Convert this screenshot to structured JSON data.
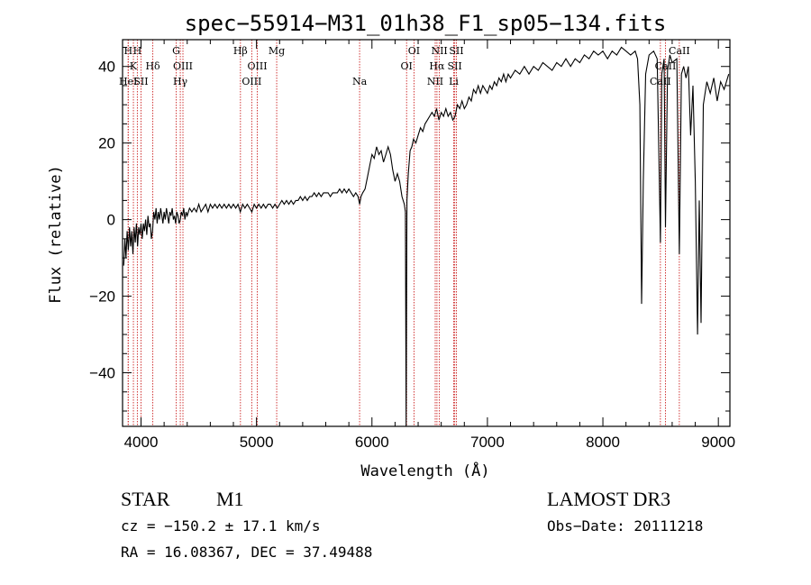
{
  "chart_data": {
    "type": "line",
    "title": "spec−55914−M31_01h38_F1_sp05−134.fits",
    "xlabel": "Wavelength (Å)",
    "ylabel": "Flux (relative)",
    "xlim": [
      3840,
      9100
    ],
    "ylim": [
      -54,
      47
    ],
    "xticks": [
      {
        "v": 4000,
        "label": "4000"
      },
      {
        "v": 5000,
        "label": "5000"
      },
      {
        "v": 6000,
        "label": "6000"
      },
      {
        "v": 7000,
        "label": "7000"
      },
      {
        "v": 8000,
        "label": "8000"
      },
      {
        "v": 9000,
        "label": "9000"
      }
    ],
    "yticks": [
      {
        "v": -40,
        "label": "−40"
      },
      {
        "v": -20,
        "label": "−20"
      },
      {
        "v": 0,
        "label": "0"
      },
      {
        "v": 20,
        "label": "20"
      },
      {
        "v": 40,
        "label": "40"
      }
    ],
    "line_color": "#000000",
    "marker_color": "#cc2222",
    "grid": false,
    "spectral_lines": [
      {
        "wl": 3889,
        "label": "H",
        "row": 0
      },
      {
        "wl": 3934,
        "label": "K",
        "row": 1
      },
      {
        "wl": 3968,
        "label": "H",
        "row": 0
      },
      {
        "wl": 3889,
        "label": "HeI",
        "row": 2
      },
      {
        "wl": 4000,
        "label": "SII",
        "row": 2
      },
      {
        "wl": 4102,
        "label": "Hδ",
        "row": 1
      },
      {
        "wl": 4305,
        "label": "G",
        "row": 0
      },
      {
        "wl": 4340,
        "label": "Hγ",
        "row": 2
      },
      {
        "wl": 4363,
        "label": "OIII",
        "row": 1
      },
      {
        "wl": 4861,
        "label": "Hβ",
        "row": 0
      },
      {
        "wl": 4959,
        "label": "OIII",
        "row": 2
      },
      {
        "wl": 5007,
        "label": "OIII",
        "row": 1
      },
      {
        "wl": 5175,
        "label": "Mg",
        "row": 0
      },
      {
        "wl": 5893,
        "label": "Na",
        "row": 2
      },
      {
        "wl": 6300,
        "label": "OI",
        "row": 1
      },
      {
        "wl": 6364,
        "label": "OI",
        "row": 0
      },
      {
        "wl": 6548,
        "label": "NII",
        "row": 2
      },
      {
        "wl": 6563,
        "label": "Hα",
        "row": 1
      },
      {
        "wl": 6584,
        "label": "NII",
        "row": 0
      },
      {
        "wl": 6708,
        "label": "Li",
        "row": 2
      },
      {
        "wl": 6717,
        "label": "SII",
        "row": 1
      },
      {
        "wl": 6731,
        "label": "SII",
        "row": 0
      },
      {
        "wl": 8498,
        "label": "CaII",
        "row": 2
      },
      {
        "wl": 8542,
        "label": "CaII",
        "row": 1
      },
      {
        "wl": 8662,
        "label": "CaII",
        "row": 0
      }
    ],
    "spectrum": [
      [
        3850,
        -12
      ],
      [
        3860,
        -5
      ],
      [
        3870,
        -10
      ],
      [
        3880,
        -3
      ],
      [
        3890,
        -8
      ],
      [
        3900,
        -2
      ],
      [
        3910,
        -7
      ],
      [
        3920,
        -3
      ],
      [
        3930,
        -9
      ],
      [
        3940,
        -2
      ],
      [
        3950,
        -6
      ],
      [
        3960,
        -1
      ],
      [
        3970,
        -7
      ],
      [
        3980,
        -2
      ],
      [
        3990,
        -4
      ],
      [
        4000,
        -1
      ],
      [
        4010,
        -5
      ],
      [
        4020,
        -1
      ],
      [
        4030,
        -3
      ],
      [
        4040,
        0
      ],
      [
        4050,
        -4
      ],
      [
        4060,
        1
      ],
      [
        4070,
        -2
      ],
      [
        4080,
        -1
      ],
      [
        4090,
        -5
      ],
      [
        4100,
        -3
      ],
      [
        4110,
        2
      ],
      [
        4120,
        0
      ],
      [
        4130,
        3
      ],
      [
        4140,
        -1
      ],
      [
        4150,
        2
      ],
      [
        4160,
        0
      ],
      [
        4170,
        3
      ],
      [
        4180,
        1
      ],
      [
        4190,
        -1
      ],
      [
        4200,
        2
      ],
      [
        4210,
        0
      ],
      [
        4220,
        3
      ],
      [
        4230,
        1
      ],
      [
        4240,
        -1
      ],
      [
        4250,
        2
      ],
      [
        4260,
        1
      ],
      [
        4270,
        3
      ],
      [
        4280,
        0
      ],
      [
        4290,
        1
      ],
      [
        4300,
        -1
      ],
      [
        4310,
        2
      ],
      [
        4320,
        1
      ],
      [
        4330,
        -1
      ],
      [
        4340,
        0
      ],
      [
        4350,
        2
      ],
      [
        4360,
        1
      ],
      [
        4370,
        3
      ],
      [
        4380,
        0
      ],
      [
        4390,
        2
      ],
      [
        4400,
        1
      ],
      [
        4420,
        3
      ],
      [
        4440,
        2
      ],
      [
        4460,
        3
      ],
      [
        4480,
        2
      ],
      [
        4500,
        4
      ],
      [
        4520,
        2
      ],
      [
        4540,
        3
      ],
      [
        4560,
        4
      ],
      [
        4580,
        2
      ],
      [
        4600,
        4
      ],
      [
        4620,
        3
      ],
      [
        4640,
        4
      ],
      [
        4660,
        3
      ],
      [
        4680,
        4
      ],
      [
        4700,
        3
      ],
      [
        4720,
        4
      ],
      [
        4740,
        3
      ],
      [
        4760,
        4
      ],
      [
        4780,
        3
      ],
      [
        4800,
        4
      ],
      [
        4820,
        3
      ],
      [
        4840,
        4
      ],
      [
        4860,
        2
      ],
      [
        4880,
        4
      ],
      [
        4900,
        3
      ],
      [
        4920,
        4
      ],
      [
        4940,
        3
      ],
      [
        4960,
        2
      ],
      [
        4980,
        4
      ],
      [
        5000,
        3
      ],
      [
        5020,
        4
      ],
      [
        5040,
        3
      ],
      [
        5060,
        4
      ],
      [
        5080,
        3
      ],
      [
        5100,
        4
      ],
      [
        5120,
        4
      ],
      [
        5140,
        3
      ],
      [
        5160,
        4
      ],
      [
        5180,
        3
      ],
      [
        5200,
        4
      ],
      [
        5220,
        5
      ],
      [
        5240,
        4
      ],
      [
        5260,
        5
      ],
      [
        5280,
        4
      ],
      [
        5300,
        5
      ],
      [
        5320,
        4
      ],
      [
        5340,
        5
      ],
      [
        5360,
        5
      ],
      [
        5380,
        6
      ],
      [
        5400,
        5
      ],
      [
        5420,
        6
      ],
      [
        5440,
        5
      ],
      [
        5460,
        6
      ],
      [
        5480,
        6
      ],
      [
        5500,
        7
      ],
      [
        5520,
        6
      ],
      [
        5540,
        7
      ],
      [
        5560,
        6
      ],
      [
        5580,
        7
      ],
      [
        5600,
        7
      ],
      [
        5620,
        7
      ],
      [
        5640,
        6
      ],
      [
        5660,
        7
      ],
      [
        5680,
        7
      ],
      [
        5700,
        7
      ],
      [
        5720,
        8
      ],
      [
        5740,
        7
      ],
      [
        5760,
        8
      ],
      [
        5780,
        7
      ],
      [
        5800,
        8
      ],
      [
        5820,
        7
      ],
      [
        5840,
        6
      ],
      [
        5860,
        7
      ],
      [
        5880,
        6
      ],
      [
        5893,
        4
      ],
      [
        5905,
        6
      ],
      [
        5920,
        7
      ],
      [
        5940,
        8
      ],
      [
        5960,
        11
      ],
      [
        5980,
        14
      ],
      [
        6000,
        17
      ],
      [
        6020,
        16
      ],
      [
        6040,
        19
      ],
      [
        6060,
        17
      ],
      [
        6080,
        18
      ],
      [
        6100,
        15
      ],
      [
        6120,
        17
      ],
      [
        6140,
        19
      ],
      [
        6160,
        17
      ],
      [
        6180,
        13
      ],
      [
        6200,
        10
      ],
      [
        6220,
        12
      ],
      [
        6240,
        10
      ],
      [
        6260,
        6
      ],
      [
        6280,
        4
      ],
      [
        6290,
        2
      ],
      [
        6296,
        -54
      ],
      [
        6303,
        5
      ],
      [
        6315,
        12
      ],
      [
        6330,
        18
      ],
      [
        6345,
        19
      ],
      [
        6360,
        21
      ],
      [
        6380,
        20
      ],
      [
        6400,
        22
      ],
      [
        6420,
        24
      ],
      [
        6440,
        23
      ],
      [
        6460,
        25
      ],
      [
        6480,
        26
      ],
      [
        6500,
        27
      ],
      [
        6520,
        28
      ],
      [
        6540,
        27
      ],
      [
        6560,
        29
      ],
      [
        6580,
        26
      ],
      [
        6600,
        28
      ],
      [
        6620,
        27
      ],
      [
        6640,
        29
      ],
      [
        6660,
        27
      ],
      [
        6680,
        28
      ],
      [
        6700,
        26
      ],
      [
        6720,
        27
      ],
      [
        6740,
        30
      ],
      [
        6760,
        29
      ],
      [
        6780,
        31
      ],
      [
        6800,
        29
      ],
      [
        6820,
        30
      ],
      [
        6840,
        32
      ],
      [
        6860,
        31
      ],
      [
        6880,
        34
      ],
      [
        6900,
        33
      ],
      [
        6920,
        35
      ],
      [
        6940,
        33
      ],
      [
        6960,
        35
      ],
      [
        6980,
        34
      ],
      [
        7000,
        33
      ],
      [
        7020,
        35
      ],
      [
        7040,
        34
      ],
      [
        7060,
        36
      ],
      [
        7080,
        35
      ],
      [
        7100,
        37
      ],
      [
        7120,
        36
      ],
      [
        7140,
        38
      ],
      [
        7160,
        36
      ],
      [
        7180,
        38
      ],
      [
        7200,
        37
      ],
      [
        7240,
        39
      ],
      [
        7280,
        38
      ],
      [
        7320,
        40
      ],
      [
        7360,
        38
      ],
      [
        7400,
        40
      ],
      [
        7440,
        39
      ],
      [
        7480,
        41
      ],
      [
        7520,
        40
      ],
      [
        7560,
        39
      ],
      [
        7600,
        41
      ],
      [
        7640,
        40
      ],
      [
        7680,
        42
      ],
      [
        7720,
        40
      ],
      [
        7760,
        42
      ],
      [
        7800,
        41
      ],
      [
        7840,
        43
      ],
      [
        7880,
        42
      ],
      [
        7920,
        44
      ],
      [
        7960,
        43
      ],
      [
        8000,
        44
      ],
      [
        8040,
        42
      ],
      [
        8080,
        44
      ],
      [
        8120,
        43
      ],
      [
        8160,
        45
      ],
      [
        8200,
        44
      ],
      [
        8240,
        43
      ],
      [
        8280,
        44
      ],
      [
        8300,
        42
      ],
      [
        8320,
        30
      ],
      [
        8335,
        -22
      ],
      [
        8350,
        10
      ],
      [
        8370,
        38
      ],
      [
        8400,
        43
      ],
      [
        8440,
        44
      ],
      [
        8470,
        42
      ],
      [
        8498,
        -6
      ],
      [
        8510,
        38
      ],
      [
        8530,
        42
      ],
      [
        8542,
        -2
      ],
      [
        8560,
        39
      ],
      [
        8580,
        43
      ],
      [
        8600,
        41
      ],
      [
        8640,
        42
      ],
      [
        8662,
        -9
      ],
      [
        8680,
        38
      ],
      [
        8700,
        40
      ],
      [
        8720,
        37
      ],
      [
        8740,
        40
      ],
      [
        8760,
        22
      ],
      [
        8780,
        35
      ],
      [
        8800,
        10
      ],
      [
        8820,
        -30
      ],
      [
        8835,
        5
      ],
      [
        8850,
        -27
      ],
      [
        8870,
        30
      ],
      [
        8900,
        36
      ],
      [
        8930,
        33
      ],
      [
        8960,
        37
      ],
      [
        8990,
        31
      ],
      [
        9020,
        36
      ],
      [
        9050,
        34
      ],
      [
        9090,
        38
      ]
    ]
  },
  "info": {
    "object_class": "STAR",
    "subclass": "M1",
    "survey": "LAMOST DR3",
    "cz": "cz = −150.2 ± 17.1 km/s",
    "obs_date": "Obs−Date: 20111218",
    "radec": "RA =  16.08367, DEC =  37.49488"
  }
}
